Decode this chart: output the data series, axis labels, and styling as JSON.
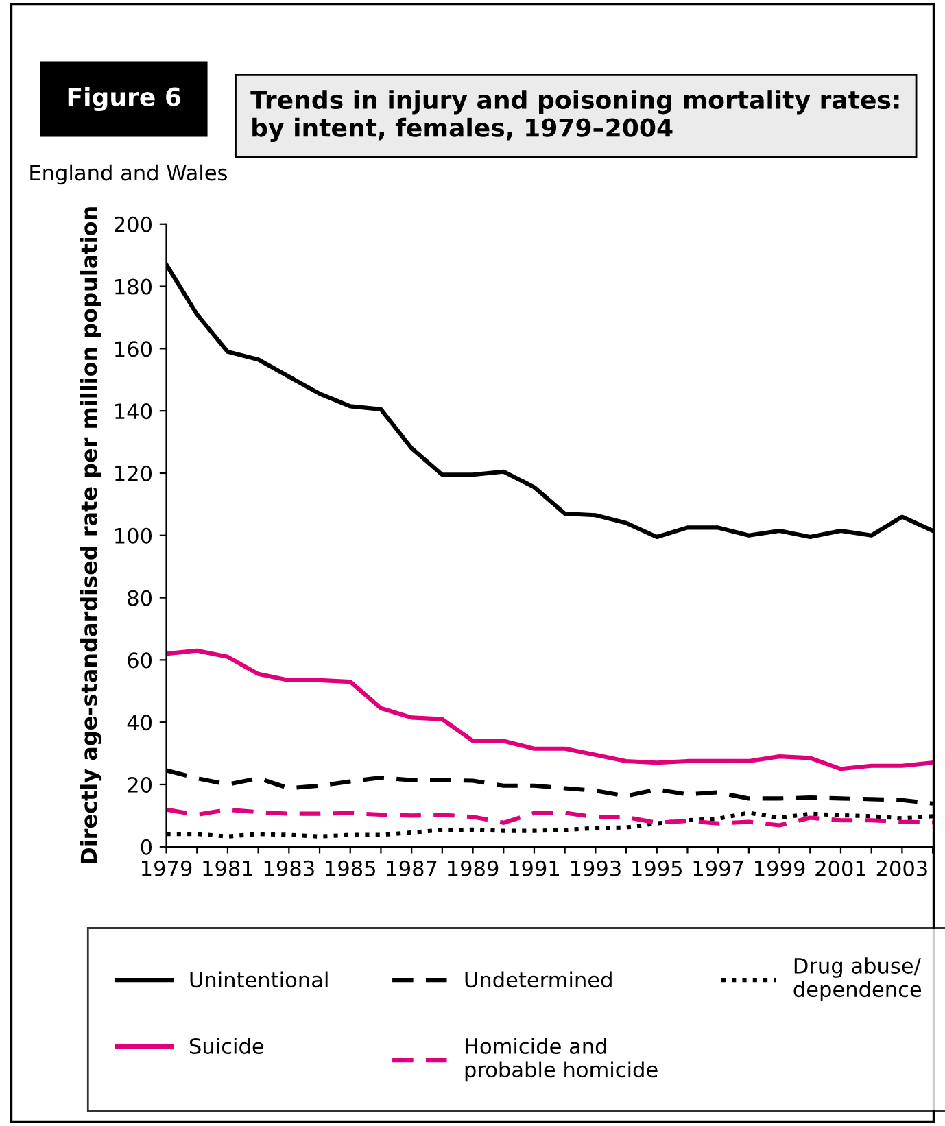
{
  "chart_data": {
    "type": "line",
    "title": "Trends in injury and poisoning mortality rates: by intent, females, 1979–2004",
    "annotations": [
      "Figure 6",
      "England and Wales"
    ],
    "ylabel": "Directly age-standardised rate per million population",
    "x": [
      1979,
      1980,
      1981,
      1982,
      1983,
      1984,
      1985,
      1986,
      1987,
      1988,
      1989,
      1990,
      1991,
      1992,
      1993,
      1994,
      1995,
      1996,
      1997,
      1998,
      1999,
      2000,
      2001,
      2002,
      2003,
      2004
    ],
    "series": [
      {
        "name": "Unintentional",
        "color": "#000000",
        "line_style": "solid",
        "values": [
          187,
          171,
          159,
          156.5,
          151,
          145.5,
          141.5,
          140.5,
          128,
          119.5,
          119.5,
          120.5,
          115.5,
          107,
          106.5,
          104,
          99.5,
          102.5,
          102.5,
          100,
          101.5,
          99.5,
          101.5,
          100,
          106,
          101.5
        ]
      },
      {
        "name": "Undetermined",
        "color": "#000000",
        "line_style": "dashed",
        "values": [
          24.5,
          22,
          20,
          22,
          18.8,
          19.6,
          21,
          22.2,
          21.4,
          21.4,
          21.2,
          19.6,
          19.6,
          18.8,
          18,
          16.3,
          18.4,
          16.8,
          17.5,
          15.5,
          15.5,
          15.8,
          15.5,
          15.3,
          15,
          13.9
        ]
      },
      {
        "name": "Drug abuse/\ndependence",
        "color": "#000000",
        "line_style": "dotted",
        "values": [
          4.1,
          4.1,
          3.3,
          4.1,
          3.8,
          3.3,
          3.8,
          3.8,
          4.6,
          5.4,
          5.5,
          5.1,
          5.1,
          5.4,
          6,
          6.2,
          7.5,
          8.5,
          9,
          10.9,
          9.3,
          10.6,
          10.1,
          9.8,
          9.1,
          9.8
        ]
      },
      {
        "name": "Suicide",
        "color": "#e0007a",
        "line_style": "solid",
        "values": [
          62,
          63,
          61,
          55.5,
          53.5,
          53.5,
          53,
          44.5,
          41.5,
          41,
          34,
          34,
          31.5,
          31.5,
          29.5,
          27.5,
          27,
          27.5,
          27.5,
          27.5,
          29,
          28.5,
          25,
          26,
          26,
          27
        ]
      },
      {
        "name": "Homicide and\nprobable homicide",
        "color": "#e0007a",
        "line_style": "dashed",
        "values": [
          11.9,
          10.3,
          11.9,
          11.1,
          10.6,
          10.6,
          10.8,
          10.3,
          10,
          10.2,
          9.6,
          7.7,
          10.8,
          10.9,
          9.5,
          9.5,
          7.7,
          8.3,
          7.5,
          8,
          6.9,
          9.3,
          8.5,
          8.5,
          8,
          7.8
        ]
      }
    ],
    "xlim": [
      1979,
      2004
    ],
    "xticks": [
      1979,
      {
        "value": 1980,
        "label": null
      },
      1981,
      {
        "value": 1982,
        "label": null
      },
      1983,
      {
        "value": 1984,
        "label": null
      },
      1985,
      {
        "value": 1986,
        "label": null
      },
      1987,
      {
        "value": 1988,
        "label": null
      },
      1989,
      {
        "value": 1990,
        "label": null
      },
      1991,
      {
        "value": 1992,
        "label": null
      },
      1993,
      {
        "value": 1994,
        "label": null
      },
      1995,
      {
        "value": 1996,
        "label": null
      },
      1997,
      {
        "value": 1998,
        "label": null
      },
      1999,
      {
        "value": 2000,
        "label": null
      },
      2001,
      {
        "value": 2002,
        "label": null
      },
      2003,
      {
        "value": 2004,
        "label": null
      }
    ],
    "ylim": [
      0,
      200
    ],
    "yticks": [
      0,
      20,
      40,
      60,
      80,
      100,
      120,
      140,
      160,
      180,
      200
    ],
    "grid": false,
    "legend": "bottom",
    "marker": "none"
  }
}
